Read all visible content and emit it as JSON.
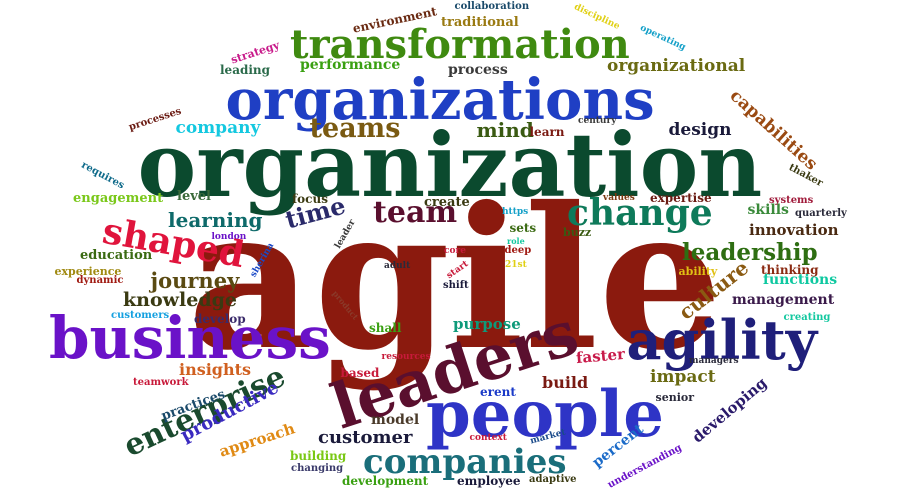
{
  "words": [
    {
      "text": "agile",
      "color": "#8b1a0e"
    },
    {
      "text": "organization",
      "color": "#0b4a2e"
    },
    {
      "text": "organizations",
      "color": "#1f3fc4"
    },
    {
      "text": "transformation",
      "color": "#3f8a10"
    },
    {
      "text": "business",
      "color": "#6a12c8"
    },
    {
      "text": "leaders",
      "color": "#5a0f2e"
    },
    {
      "text": "people",
      "color": "#2e34c6"
    },
    {
      "text": "agility",
      "color": "#1f1f7a"
    },
    {
      "text": "change",
      "color": "#0e7a5a"
    },
    {
      "text": "companies",
      "color": "#1a6e7a"
    },
    {
      "text": "leadership",
      "color": "#2e6e12"
    },
    {
      "text": "team",
      "color": "#5a0f2e"
    },
    {
      "text": "teams",
      "color": "#7a5a12"
    },
    {
      "text": "shaped",
      "color": "#e0143c"
    },
    {
      "text": "enterprise",
      "color": "#1a4a2e"
    },
    {
      "text": "mind",
      "color": "#3a5a12"
    },
    {
      "text": "time",
      "color": "#2a2a6a"
    },
    {
      "text": "culture",
      "color": "#8a5a12"
    },
    {
      "text": "learning",
      "color": "#0e6a6a"
    },
    {
      "text": "journey",
      "color": "#5a4a12"
    },
    {
      "text": "knowledge",
      "color": "#3a3a12"
    },
    {
      "text": "customer",
      "color": "#1a1a3a"
    },
    {
      "text": "capabilities",
      "color": "#9a4a12"
    },
    {
      "text": "design",
      "color": "#1a1a3a"
    },
    {
      "text": "company",
      "color": "#14c8e0"
    },
    {
      "text": "organizational",
      "color": "#6a6a12"
    },
    {
      "text": "performance",
      "color": "#3aa012"
    },
    {
      "text": "process",
      "color": "#3a3a3a"
    },
    {
      "text": "innovation",
      "color": "#4a2a12"
    },
    {
      "text": "impact",
      "color": "#6a6a12"
    },
    {
      "text": "build",
      "color": "#7a1a12"
    },
    {
      "text": "purpose",
      "color": "#0e9a7a"
    },
    {
      "text": "management",
      "color": "#3a1a4a"
    },
    {
      "text": "insights",
      "color": "#d06020"
    },
    {
      "text": "productive",
      "color": "#3a2ac0"
    },
    {
      "text": "practices",
      "color": "#1a4a6a"
    },
    {
      "text": "model",
      "color": "#4a3a2a"
    },
    {
      "text": "faster",
      "color": "#c81a4a"
    },
    {
      "text": "developing",
      "color": "#2a1a6a"
    },
    {
      "text": "skills",
      "color": "#3a8a3a"
    },
    {
      "text": "functions",
      "color": "#0ec8a0"
    },
    {
      "text": "thinking",
      "color": "#8a2a12"
    },
    {
      "text": "environment",
      "color": "#6a2a12"
    },
    {
      "text": "traditional",
      "color": "#9a7a12"
    },
    {
      "text": "collaboration",
      "color": "#1a4a6a"
    },
    {
      "text": "strategy",
      "color": "#c81a8a"
    },
    {
      "text": "leading",
      "color": "#2a6a4a"
    },
    {
      "text": "discipline",
      "color": "#e0d014"
    },
    {
      "text": "operating",
      "color": "#14a0c8"
    },
    {
      "text": "processes",
      "color": "#6a1a12"
    },
    {
      "text": "learn",
      "color": "#7a1a12"
    },
    {
      "text": "century",
      "color": "#3a3a3a"
    },
    {
      "text": "requires",
      "color": "#0e6a8a"
    },
    {
      "text": "engagement",
      "color": "#7ac81a"
    },
    {
      "text": "level",
      "color": "#3a6a3a"
    },
    {
      "text": "focus",
      "color": "#3a3a12"
    },
    {
      "text": "create",
      "color": "#3a3a12"
    },
    {
      "text": "expertise",
      "color": "#6a1a12"
    },
    {
      "text": "values",
      "color": "#7a3a12"
    },
    {
      "text": "thaker",
      "color": "#3a3a12"
    },
    {
      "text": "systems",
      "color": "#a01a3a"
    },
    {
      "text": "quarterly",
      "color": "#2a2a3a"
    },
    {
      "text": "buzz",
      "color": "#3a5a12"
    },
    {
      "text": "https",
      "color": "#14a0c8"
    },
    {
      "text": "sets",
      "color": "#3a6a12"
    },
    {
      "text": "london",
      "color": "#6a12c8"
    },
    {
      "text": "education",
      "color": "#3a6a12"
    },
    {
      "text": "experience",
      "color": "#a08a12"
    },
    {
      "text": "dynamic",
      "color": "#a01a12"
    },
    {
      "text": "sherina",
      "color": "#1a4ac8"
    },
    {
      "text": "leader",
      "color": "#3a3a3a"
    },
    {
      "text": "core",
      "color": "#c81a3a"
    },
    {
      "text": "deep",
      "color": "#a01a12"
    },
    {
      "text": "role",
      "color": "#14c8a0"
    },
    {
      "text": "21st",
      "color": "#e0d014"
    },
    {
      "text": "start",
      "color": "#c81a3a"
    },
    {
      "text": "adult",
      "color": "#2a2a3a"
    },
    {
      "text": "shift",
      "color": "#1a1a3a"
    },
    {
      "text": "ability",
      "color": "#e0c014"
    },
    {
      "text": "customers",
      "color": "#14a0e0"
    },
    {
      "text": "develop",
      "color": "#3a2a6a"
    },
    {
      "text": "product",
      "color": "#8a3a2a"
    },
    {
      "text": "shall",
      "color": "#3aa012"
    },
    {
      "text": "creating",
      "color": "#14c8a0"
    },
    {
      "text": "managers",
      "color": "#2a2a3a"
    },
    {
      "text": "resources",
      "color": "#c81a3a"
    },
    {
      "text": "based",
      "color": "#c81a3a"
    },
    {
      "text": "senior",
      "color": "#2a2a3a"
    },
    {
      "text": "teamwork",
      "color": "#c81a3a"
    },
    {
      "text": "approach",
      "color": "#e08a14"
    },
    {
      "text": "erent",
      "color": "#1a3ac8"
    },
    {
      "text": "percent",
      "color": "#1a6ac8"
    },
    {
      "text": "context",
      "color": "#c81a3a"
    },
    {
      "text": "market",
      "color": "#1a4a8a"
    },
    {
      "text": "understanding",
      "color": "#6a12c8"
    },
    {
      "text": "building",
      "color": "#7ac814"
    },
    {
      "text": "changing",
      "color": "#3a3a6a"
    },
    {
      "text": "development",
      "color": "#3aa012"
    },
    {
      "text": "employee",
      "color": "#1a1a3a"
    },
    {
      "text": "adaptive",
      "color": "#3a3a12"
    }
  ]
}
